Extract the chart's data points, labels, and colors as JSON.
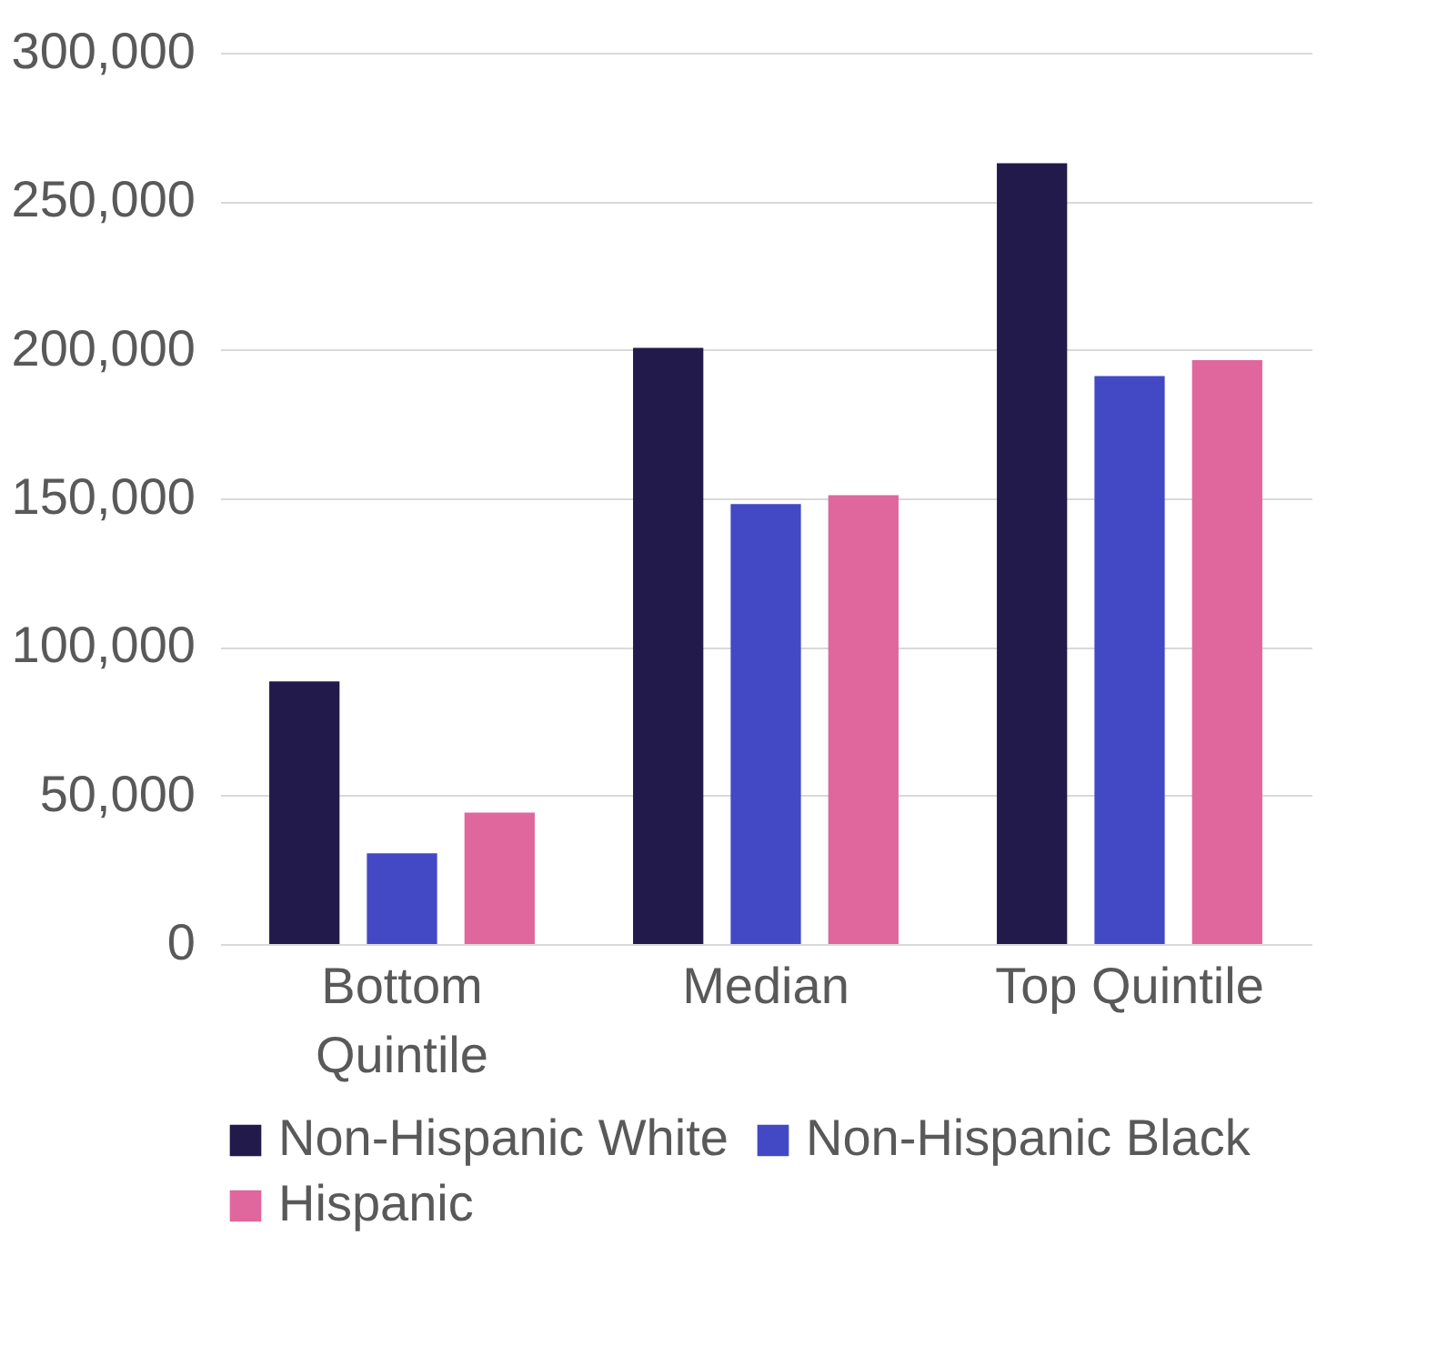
{
  "chart_data": {
    "type": "bar",
    "categories": [
      "Bottom\nQuintile",
      "Median",
      "Top Quintile"
    ],
    "series": [
      {
        "name": "Non-Hispanic White",
        "color": "#211a4a",
        "values": [
          88400,
          200700,
          262800
        ]
      },
      {
        "name": "Non-Hispanic Black",
        "color": "#4349c4",
        "values": [
          30500,
          148100,
          191200
        ]
      },
      {
        "name": "Hispanic",
        "color": "#e0679d",
        "values": [
          44200,
          151100,
          196500
        ]
      }
    ],
    "ylim": [
      0,
      300000
    ],
    "yticks": [
      0,
      {
        "value": 50000,
        "label": "50,000"
      },
      {
        "value": 100000,
        "label": "100,000"
      },
      {
        "value": 150000,
        "label": "150,000"
      },
      {
        "value": 200000,
        "label": "200,000"
      },
      {
        "value": 250000,
        "label": "250,000"
      },
      {
        "value": 300000,
        "label": "300,000"
      }
    ],
    "grid": "y",
    "legend": "bottom"
  }
}
